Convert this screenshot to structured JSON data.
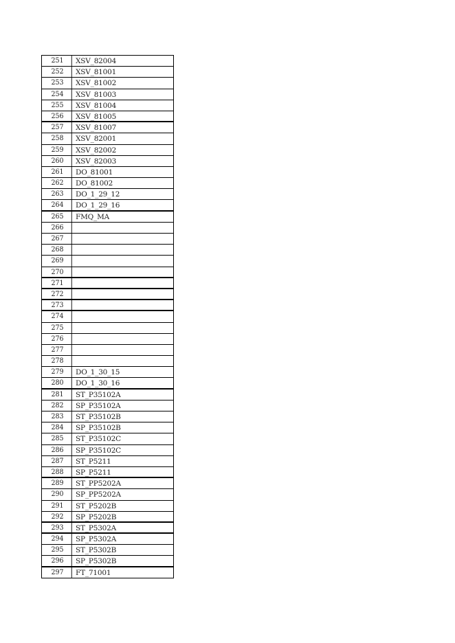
{
  "rows": [
    {
      "no": "251",
      "tag": "XSV_82004"
    },
    {
      "no": "252",
      "tag": "XSV_81001"
    },
    {
      "no": "253",
      "tag": "XSV_81002"
    },
    {
      "no": "254",
      "tag": "XSV_81003"
    },
    {
      "no": "255",
      "tag": "XSV_81004"
    },
    {
      "no": "256",
      "tag": "XSV_81005"
    },
    {
      "no": "257",
      "tag": "XSV_81007"
    },
    {
      "no": "258",
      "tag": "XSV_82001"
    },
    {
      "no": "259",
      "tag": "XSV_82002"
    },
    {
      "no": "260",
      "tag": "XSV_82003"
    },
    {
      "no": "261",
      "tag": "DO_81001"
    },
    {
      "no": "262",
      "tag": "DO_81002"
    },
    {
      "no": "263",
      "tag": "DO_1_29_12"
    },
    {
      "no": "264",
      "tag": "DO_1_29_16"
    },
    {
      "no": "265",
      "tag": "FMQ_MA"
    },
    {
      "no": "266",
      "tag": ""
    },
    {
      "no": "267",
      "tag": ""
    },
    {
      "no": "268",
      "tag": ""
    },
    {
      "no": "269",
      "tag": ""
    },
    {
      "no": "270",
      "tag": ""
    },
    {
      "no": "271",
      "tag": ""
    },
    {
      "no": "272",
      "tag": ""
    },
    {
      "no": "273",
      "tag": ""
    },
    {
      "no": "274",
      "tag": ""
    },
    {
      "no": "275",
      "tag": ""
    },
    {
      "no": "276",
      "tag": ""
    },
    {
      "no": "277",
      "tag": ""
    },
    {
      "no": "278",
      "tag": ""
    },
    {
      "no": "279",
      "tag": "DO_1_30_15"
    },
    {
      "no": "280",
      "tag": "DO_1_30_16"
    },
    {
      "no": "281",
      "tag": "ST_P35102A"
    },
    {
      "no": "282",
      "tag": "SP_P35102A"
    },
    {
      "no": "283",
      "tag": "ST_P35102B"
    },
    {
      "no": "284",
      "tag": "SP_P35102B"
    },
    {
      "no": "285",
      "tag": "ST_P35102C"
    },
    {
      "no": "286",
      "tag": "SP_P35102C"
    },
    {
      "no": "287",
      "tag": "ST_P5211"
    },
    {
      "no": "288",
      "tag": "SP_P5211"
    },
    {
      "no": "289",
      "tag": "ST_PP5202A"
    },
    {
      "no": "290",
      "tag": "SP_PP5202A"
    },
    {
      "no": "291",
      "tag": "ST_P5202B"
    },
    {
      "no": "292",
      "tag": "SP_P5202B"
    },
    {
      "no": "293",
      "tag": "ST_P5302A"
    },
    {
      "no": "294",
      "tag": "SP_P5302A"
    },
    {
      "no": "295",
      "tag": "ST_P5302B"
    },
    {
      "no": "296",
      "tag": "SP_P5302B"
    },
    {
      "no": "297",
      "tag": "FT_71001"
    }
  ]
}
